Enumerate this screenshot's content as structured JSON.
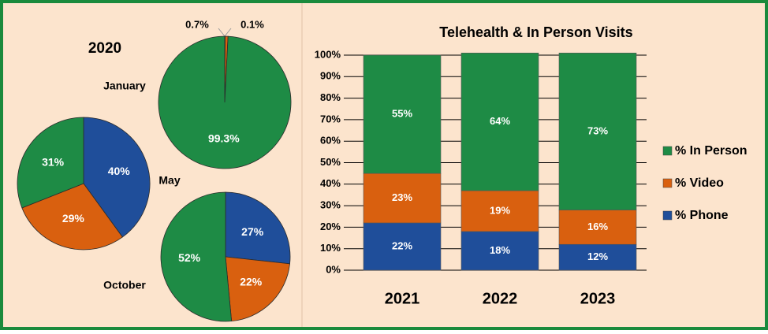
{
  "group_title": "2020",
  "chart_data": [
    {
      "type": "pie",
      "title": "January",
      "values": [
        0.1,
        0.7,
        99.3
      ],
      "value_labels": [
        "0.1%",
        "0.7%",
        "99.3%"
      ],
      "colors": [
        "#1f4e9a",
        "#d9600f",
        "#1e8b45"
      ]
    },
    {
      "type": "pie",
      "title": "May",
      "values": [
        40,
        29,
        31
      ],
      "value_labels": [
        "40%",
        "29%",
        "31%"
      ],
      "colors": [
        "#1f4e9a",
        "#d9600f",
        "#1e8b45"
      ]
    },
    {
      "type": "pie",
      "title": "October",
      "values": [
        27,
        22,
        52
      ],
      "value_labels": [
        "27%",
        "22%",
        "52%"
      ],
      "colors": [
        "#1f4e9a",
        "#d9600f",
        "#1e8b45"
      ]
    },
    {
      "type": "bar",
      "stacked": true,
      "title": "Telehealth & In Person Visits",
      "categories": [
        "2021",
        "2022",
        "2023"
      ],
      "series": [
        {
          "name": "% Phone",
          "color": "#1f4e9a",
          "values": [
            22,
            18,
            12
          ],
          "value_labels": [
            "22%",
            "18%",
            "12%"
          ]
        },
        {
          "name": "% Video",
          "color": "#d9600f",
          "values": [
            23,
            19,
            16
          ],
          "value_labels": [
            "23%",
            "19%",
            "16%"
          ]
        },
        {
          "name": "% In Person",
          "color": "#1e8b45",
          "values": [
            55,
            64,
            73
          ],
          "value_labels": [
            "55%",
            "64%",
            "73%"
          ]
        }
      ],
      "ylim": [
        0,
        100
      ],
      "yticks": [
        {
          "value": 0,
          "label": "0%"
        },
        {
          "value": 10,
          "label": "10%"
        },
        {
          "value": 20,
          "label": "20%"
        },
        {
          "value": 30,
          "label": "30%"
        },
        {
          "value": 40,
          "label": "40%"
        },
        {
          "value": 50,
          "label": "50%"
        },
        {
          "value": 60,
          "label": "60%"
        },
        {
          "value": 70,
          "label": "70%"
        },
        {
          "value": 80,
          "label": "80%"
        },
        {
          "value": 90,
          "label": "90%"
        },
        {
          "value": 100,
          "label": "100%"
        }
      ],
      "grid": true,
      "legend": "right"
    }
  ]
}
